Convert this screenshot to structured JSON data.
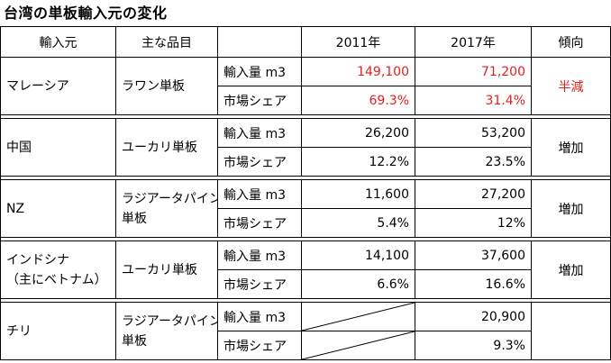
{
  "title": "台湾の単板輸入元の変化",
  "headers": {
    "origin": "輸入元",
    "item": "主な品目",
    "metric": "",
    "y2011": "2011年",
    "y2017": "2017年",
    "trend": "傾向"
  },
  "metrics": {
    "volume": "輸入量 m3",
    "share": "市場シェア"
  },
  "rows": [
    {
      "origin": "マレーシア",
      "item": "ラワン単板",
      "vol2011": "149,100",
      "vol2017": "71,200",
      "share2011": "69.3%",
      "share2017": "31.4%",
      "trend": "半減"
    },
    {
      "origin": "中国",
      "item": "ユーカリ単板",
      "vol2011": "26,200",
      "vol2017": "53,200",
      "share2011": "12.2%",
      "share2017": "23.5%",
      "trend": "増加"
    },
    {
      "origin": "NZ",
      "item_line1": "ラジアータパイン",
      "item_line2": "単板",
      "vol2011": "11,600",
      "vol2017": "27,200",
      "share2011": "5.4%",
      "share2017": "12%",
      "trend": "増加"
    },
    {
      "origin_line1": "インドシナ",
      "origin_line2": "（主にベトナム）",
      "item": "ユーカリ単板",
      "vol2011": "14,100",
      "vol2017": "37,600",
      "share2011": "6.6%",
      "share2017": "16.6%",
      "trend": "増加"
    },
    {
      "origin": "チリ",
      "item_line1": "ラジアータパイン",
      "item_line2": "単板",
      "vol2011": "",
      "vol2017": "20,900",
      "share2011": "",
      "share2017": "9.3%",
      "trend": ""
    }
  ],
  "colors": {
    "highlight": "#e02020"
  }
}
